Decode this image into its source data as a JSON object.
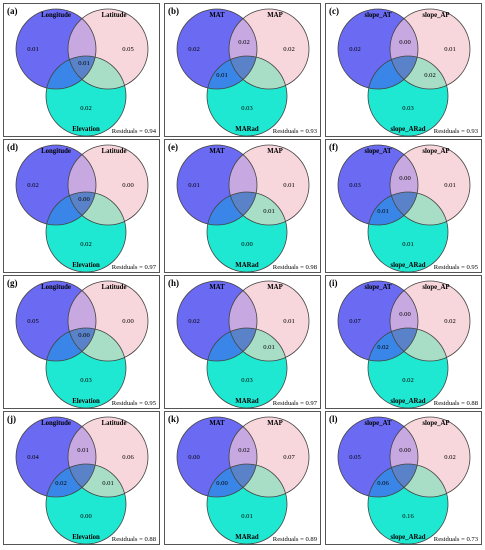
{
  "colors": {
    "circle_a": "#6a6af2",
    "circle_b": "#f7d6dc",
    "circle_c": "#1fe8d2",
    "ab": "#c8a8e0",
    "ac": "#3a86e8",
    "bc": "#a8dec6",
    "abc": "#5a82c8",
    "stroke": "#444444"
  },
  "panels": [
    {
      "label": "(a)",
      "sets": [
        "Longitude",
        "Latitude",
        "Elevation"
      ],
      "values": {
        "a": "0.01",
        "b": "0.05",
        "c": "0.02",
        "ab": "",
        "ac": "",
        "bc": "",
        "abc": "0.01"
      },
      "residuals": "Residuals = 0.94"
    },
    {
      "label": "(b)",
      "sets": [
        "MAT",
        "MAP",
        "MARad"
      ],
      "values": {
        "a": "0.02",
        "b": "0.02",
        "c": "0.03",
        "ab": "0.02",
        "ac": "0.01",
        "bc": "",
        "abc": ""
      },
      "residuals": "Residuals = 0.93"
    },
    {
      "label": "(c)",
      "sets": [
        "slope_AT",
        "slope_AP",
        "slope_ARad"
      ],
      "values": {
        "a": "0.02",
        "b": "0.01",
        "c": "0.03",
        "ab": "0.00",
        "ac": "",
        "bc": "0.02",
        "abc": ""
      },
      "residuals": "Residuals = 0.93"
    },
    {
      "label": "(d)",
      "sets": [
        "Longitude",
        "Latitude",
        "Elevation"
      ],
      "values": {
        "a": "0.02",
        "b": "0.00",
        "c": "0.02",
        "ab": "",
        "ac": "",
        "bc": "",
        "abc": "0.00"
      },
      "residuals": "Residuals = 0.97"
    },
    {
      "label": "(e)",
      "sets": [
        "MAT",
        "MAP",
        "MARad"
      ],
      "values": {
        "a": "0.01",
        "b": "0.01",
        "c": "0.00",
        "ab": "",
        "ac": "",
        "bc": "0.01",
        "abc": ""
      },
      "residuals": "Residuals = 0.98"
    },
    {
      "label": "(f)",
      "sets": [
        "slope_AT",
        "slope_AP",
        "slope_ARad"
      ],
      "values": {
        "a": "0.03",
        "b": "0.01",
        "c": "0.01",
        "ab": "0.00",
        "ac": "0.01",
        "bc": "",
        "abc": ""
      },
      "residuals": "Residuals = 0.95"
    },
    {
      "label": "(g)",
      "sets": [
        "Longitude",
        "Latitude",
        "Elevation"
      ],
      "values": {
        "a": "0.05",
        "b": "0.00",
        "c": "0.03",
        "ab": "",
        "ac": "",
        "bc": "",
        "abc": "0.00"
      },
      "residuals": "Residuals = 0.95"
    },
    {
      "label": "(h)",
      "sets": [
        "MAT",
        "MAP",
        "MARad"
      ],
      "values": {
        "a": "0.02",
        "b": "0.01",
        "c": "0.03",
        "ab": "",
        "ac": "",
        "bc": "0.01",
        "abc": ""
      },
      "residuals": "Residuals = 0.97"
    },
    {
      "label": "(i)",
      "sets": [
        "slope_AT",
        "slope_AP",
        "slope_ARad"
      ],
      "values": {
        "a": "0.07",
        "b": "0.02",
        "c": "0.02",
        "ab": "0.00",
        "ac": "0.02",
        "bc": "",
        "abc": ""
      },
      "residuals": "Residuals = 0.88"
    },
    {
      "label": "(j)",
      "sets": [
        "Longitude",
        "Latitude",
        "Elevation"
      ],
      "values": {
        "a": "0.04",
        "b": "0.06",
        "c": "0.00",
        "ab": "0.01",
        "ac": "0.02",
        "bc": "0.01",
        "abc": ""
      },
      "residuals": "Residuals = 0.88"
    },
    {
      "label": "(k)",
      "sets": [
        "MAT",
        "MAP",
        "MARad"
      ],
      "values": {
        "a": "0.00",
        "b": "0.07",
        "c": "0.01",
        "ab": "0.02",
        "ac": "0.00",
        "bc": "",
        "abc": ""
      },
      "residuals": "Residuals = 0.89"
    },
    {
      "label": "(l)",
      "sets": [
        "slope_AT",
        "slope_AP",
        "slope_ARad"
      ],
      "values": {
        "a": "0.05",
        "b": "0.02",
        "c": "0.16",
        "ab": "0.00",
        "ac": "0.06",
        "bc": "",
        "abc": ""
      },
      "residuals": "Residuals = 0.73"
    }
  ]
}
